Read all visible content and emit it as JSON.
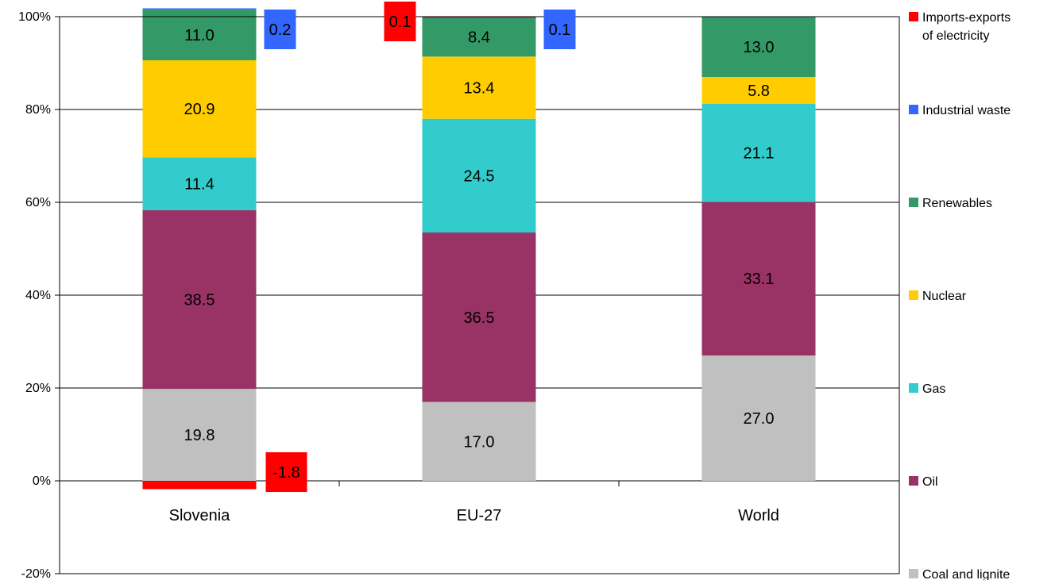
{
  "chart_data": {
    "type": "bar",
    "stacked": true,
    "normalized_percent": true,
    "categories": [
      "Slovenia",
      "EU-27",
      "World"
    ],
    "y_ticks": [
      "-20%",
      "0%",
      "20%",
      "40%",
      "60%",
      "80%",
      "100%"
    ],
    "ylim": [
      -20,
      100
    ],
    "grid": "horizontal",
    "legend_position": "right",
    "series": [
      {
        "name": "Coal and lignite",
        "color": "#c0c0c0",
        "values": [
          19.8,
          17.0,
          27.0
        ]
      },
      {
        "name": "Oil",
        "color": "#993366",
        "values": [
          38.5,
          36.5,
          33.1
        ]
      },
      {
        "name": "Gas",
        "color": "#33cccc",
        "values": [
          11.4,
          24.5,
          21.1
        ]
      },
      {
        "name": "Nuclear",
        "color": "#ffcc00",
        "values": [
          20.9,
          13.4,
          5.8
        ]
      },
      {
        "name": "Renewables",
        "color": "#339966",
        "values": [
          11.0,
          8.4,
          13.0
        ]
      },
      {
        "name": "Industrial waste",
        "color": "#3366ff",
        "values": [
          0.2,
          0.1,
          null
        ]
      },
      {
        "name": "Imports-exports of electricity",
        "color": "#ff0000",
        "values": [
          -1.8,
          0.1,
          null
        ]
      }
    ],
    "legend": [
      {
        "label": "Imports-exports of electricity",
        "color": "#ff0000"
      },
      {
        "label": "Industrial waste",
        "color": "#3366ff"
      },
      {
        "label": "Renewables",
        "color": "#339966"
      },
      {
        "label": "Nuclear",
        "color": "#ffcc00"
      },
      {
        "label": "Gas",
        "color": "#33cccc"
      },
      {
        "label": "Oil",
        "color": "#993366"
      },
      {
        "label": "Coal and lignite",
        "color": "#c0c0c0"
      }
    ],
    "data_labels": [
      {
        "category": "Slovenia",
        "series": "Coal and lignite",
        "text": "19.8"
      },
      {
        "category": "Slovenia",
        "series": "Oil",
        "text": "38.5"
      },
      {
        "category": "Slovenia",
        "series": "Gas",
        "text": "11.4"
      },
      {
        "category": "Slovenia",
        "series": "Nuclear",
        "text": "20.9"
      },
      {
        "category": "Slovenia",
        "series": "Renewables",
        "text": "11.0"
      },
      {
        "category": "Slovenia",
        "series": "Industrial waste",
        "text": "0.2",
        "callout": true
      },
      {
        "category": "Slovenia",
        "series": "Imports-exports of electricity",
        "text": "-1.8",
        "callout": true
      },
      {
        "category": "EU-27",
        "series": "Coal and lignite",
        "text": "17.0"
      },
      {
        "category": "EU-27",
        "series": "Oil",
        "text": "36.5"
      },
      {
        "category": "EU-27",
        "series": "Gas",
        "text": "24.5"
      },
      {
        "category": "EU-27",
        "series": "Nuclear",
        "text": "13.4"
      },
      {
        "category": "EU-27",
        "series": "Renewables",
        "text": "8.4"
      },
      {
        "category": "EU-27",
        "series": "Industrial waste",
        "text": "0.1",
        "callout": true
      },
      {
        "category": "EU-27",
        "series": "Imports-exports of electricity",
        "text": "0.1",
        "callout": true
      },
      {
        "category": "World",
        "series": "Coal and lignite",
        "text": "27.0"
      },
      {
        "category": "World",
        "series": "Oil",
        "text": "33.1"
      },
      {
        "category": "World",
        "series": "Gas",
        "text": "21.1"
      },
      {
        "category": "World",
        "series": "Nuclear",
        "text": "5.8"
      },
      {
        "category": "World",
        "series": "Renewables",
        "text": "13.0"
      }
    ]
  }
}
